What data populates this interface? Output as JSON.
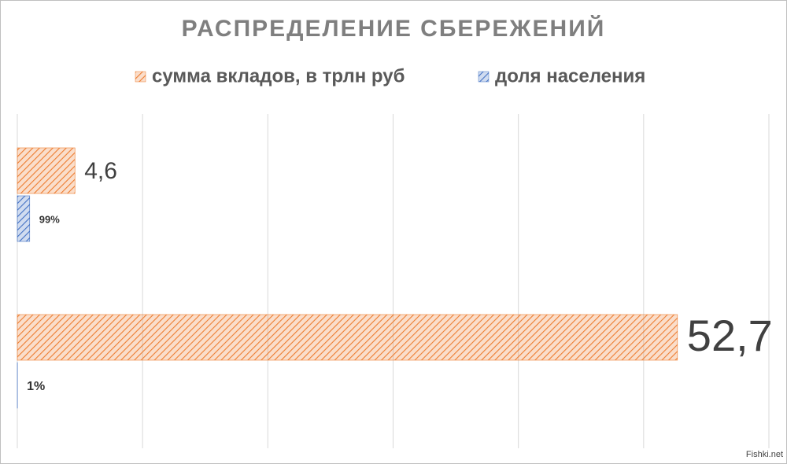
{
  "chart_data": {
    "type": "hbar",
    "title": "РАСПРЕДЕЛЕНИЕ СБЕРЕЖЕНИЙ",
    "categories": [
      null,
      null
    ],
    "series": [
      {
        "name": "сумма вкладов, в трлн руб",
        "color": "#ed7d31",
        "values": [
          4.6,
          52.7
        ],
        "value_labels": [
          "4,6",
          "52,7"
        ]
      },
      {
        "name": "доля населения",
        "color": "#4472c4",
        "values": [
          0.99,
          0.01
        ],
        "value_labels": [
          "99%",
          "1%"
        ]
      }
    ],
    "xlim": [
      0,
      60
    ],
    "xticks": [
      0,
      10,
      20,
      30,
      40,
      50,
      60
    ],
    "grid": true,
    "legend": "top",
    "watermark": "Fishki.net"
  }
}
